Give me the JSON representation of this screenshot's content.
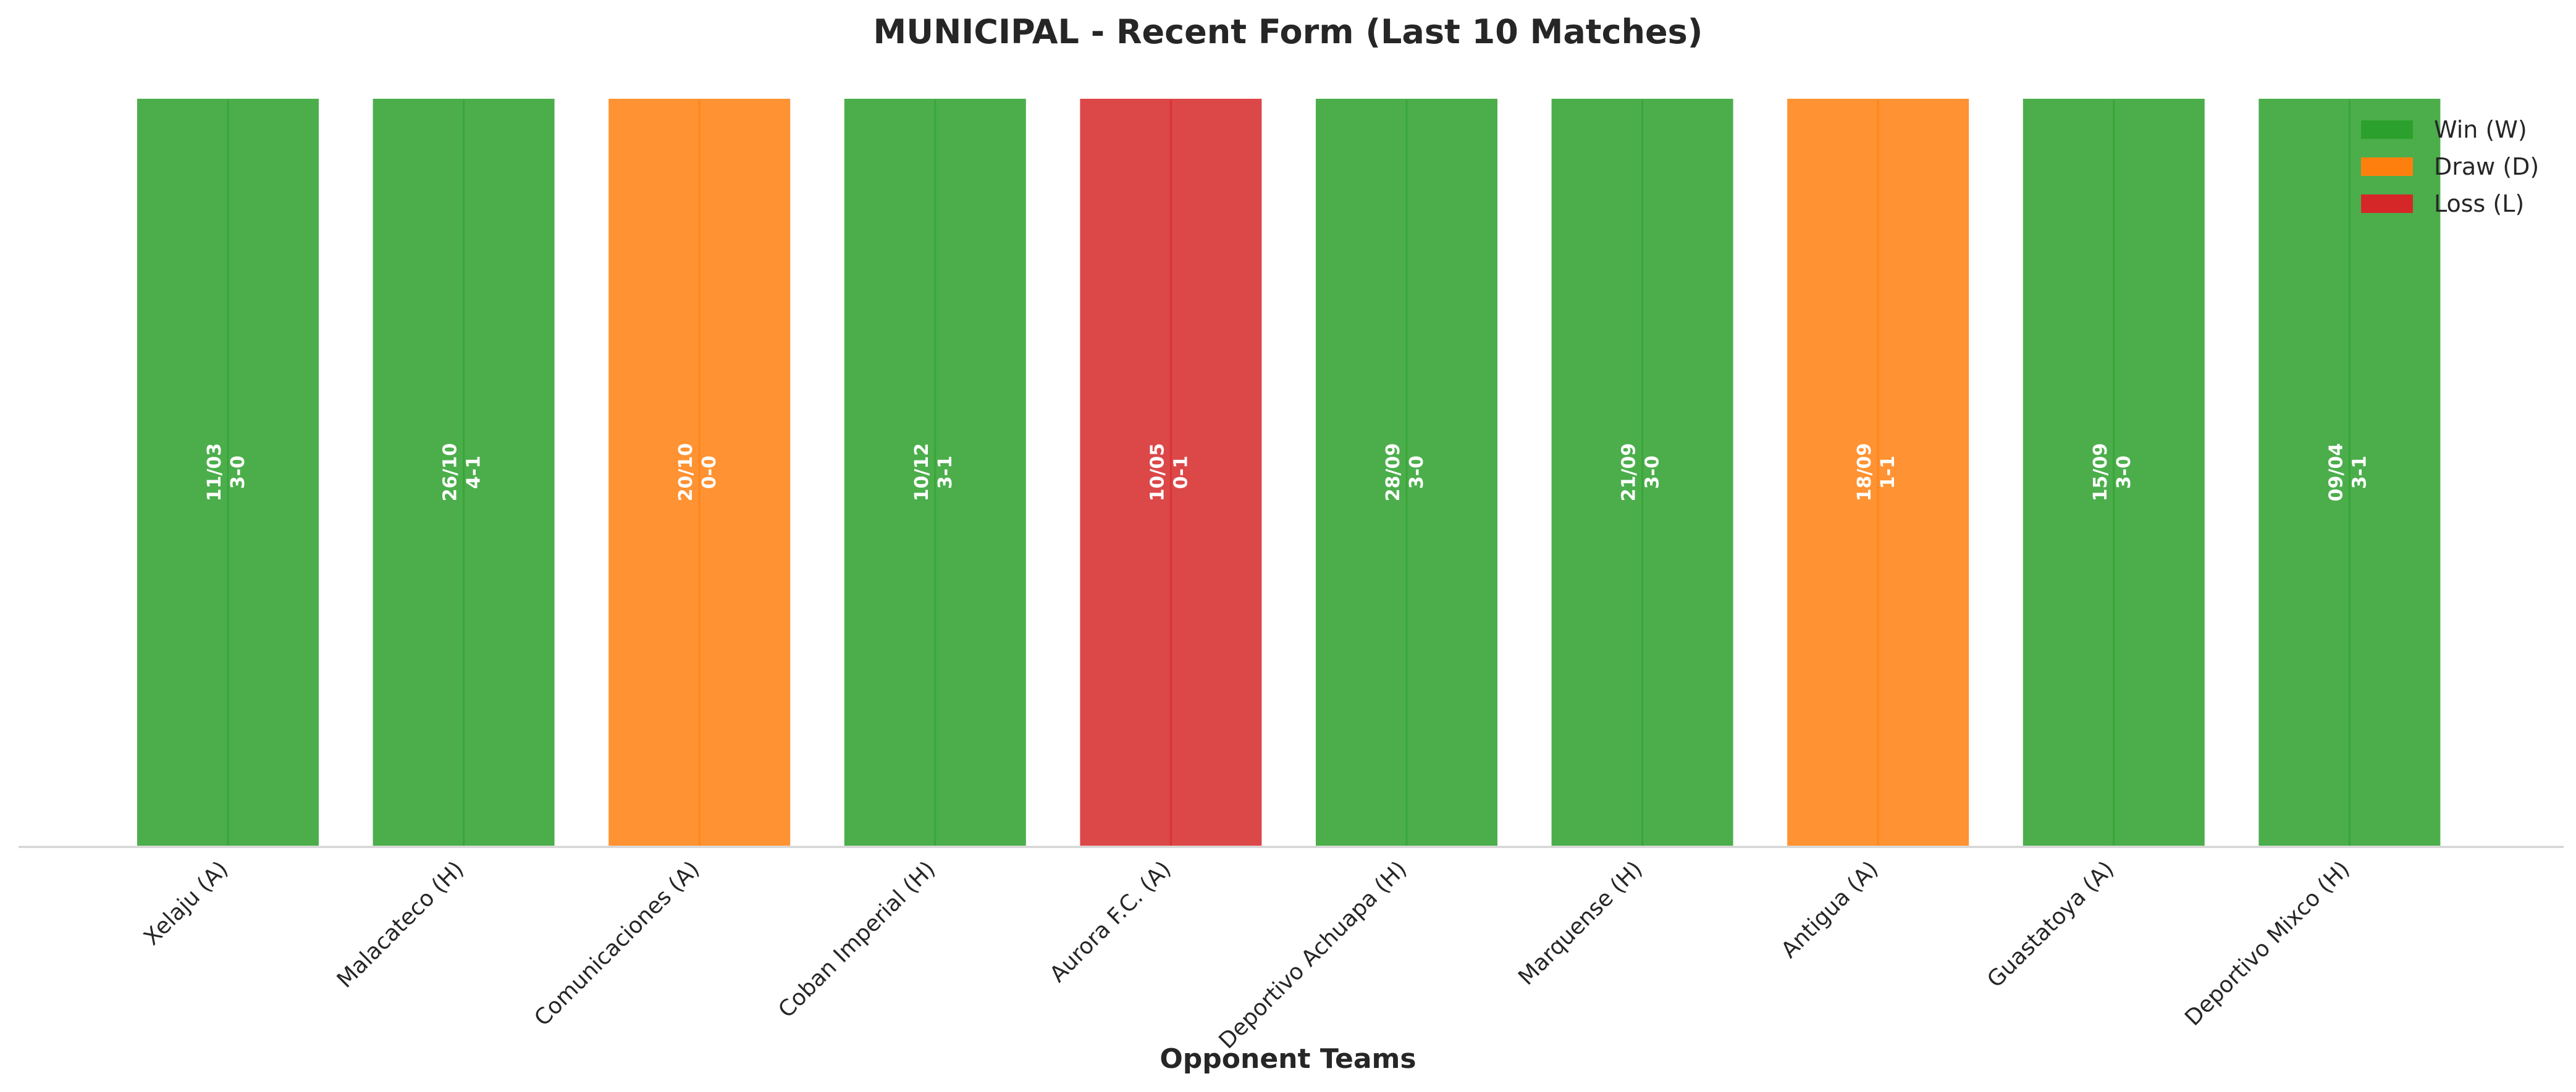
{
  "chart_data": {
    "type": "bar",
    "title": "MUNICIPAL - Recent Form (Last 10 Matches)",
    "xlabel": "Opponent Teams",
    "ylabel": "",
    "grid": false,
    "legend_position": "top-right",
    "categories": [
      "Xelaju (A)",
      "Malacateco (H)",
      "Comunicaciones (A)",
      "Coban Imperial (H)",
      "Aurora F.C. (A)",
      "Deportivo Achuapa (H)",
      "Marquense (H)",
      "Antigua (A)",
      "Guastatoya (A)",
      "Deportivo Mixco (H)"
    ],
    "values": [
      1,
      1,
      1,
      1,
      1,
      1,
      1,
      1,
      1,
      1
    ],
    "results": [
      "W",
      "W",
      "D",
      "W",
      "L",
      "W",
      "W",
      "D",
      "W",
      "W"
    ],
    "dates": [
      "11/03",
      "26/10",
      "20/10",
      "10/12",
      "10/05",
      "28/09",
      "21/09",
      "18/09",
      "15/09",
      "09/04"
    ],
    "scores": [
      "3-0",
      "4-1",
      "0-0",
      "3-1",
      "0-1",
      "3-0",
      "3-0",
      "1-1",
      "3-0",
      "3-1"
    ],
    "legend": [
      {
        "key": "W",
        "label": "Win (W)",
        "color": "#2ca02c"
      },
      {
        "key": "D",
        "label": "Draw (D)",
        "color": "#ff7f0e"
      },
      {
        "key": "L",
        "label": "Loss (L)",
        "color": "#d62728"
      }
    ],
    "bar_alpha": 0.85
  }
}
